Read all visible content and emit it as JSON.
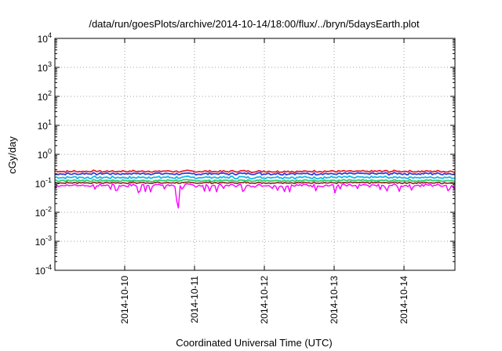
{
  "chart_data": {
    "type": "line",
    "title": "/data/run/goesPlots/archive/2014-10-14/18:00/flux/../bryn/5daysEarth.plot",
    "xlabel": "Coordinated Universal Time (UTC)",
    "ylabel": "cGy/day",
    "y_scale": "log",
    "ylim": [
      0.0001,
      10000
    ],
    "xlim": [
      0,
      5.73
    ],
    "grid": true,
    "y_ticks": [
      {
        "value": 0.0001,
        "base": "10",
        "exp": "-4"
      },
      {
        "value": 0.001,
        "base": "10",
        "exp": "-3"
      },
      {
        "value": 0.01,
        "base": "10",
        "exp": "-2"
      },
      {
        "value": 0.1,
        "base": "10",
        "exp": "-1"
      },
      {
        "value": 1,
        "base": "10",
        "exp": "0"
      },
      {
        "value": 10,
        "base": "10",
        "exp": "1"
      },
      {
        "value": 100,
        "base": "10",
        "exp": "2"
      },
      {
        "value": 1000,
        "base": "10",
        "exp": "3"
      },
      {
        "value": 10000,
        "base": "10",
        "exp": "4"
      }
    ],
    "x_ticks": [
      {
        "value": 1,
        "label": "2014-10-10"
      },
      {
        "value": 2,
        "label": "2014-10-11"
      },
      {
        "value": 3,
        "label": "2014-10-12"
      },
      {
        "value": 4,
        "label": "2014-10-13"
      },
      {
        "value": 5,
        "label": "2014-10-14"
      }
    ],
    "series": [
      {
        "color": "#e8202a",
        "level": 0.26,
        "spread": 0.08
      },
      {
        "color": "#2c3ddc",
        "level": 0.215,
        "spread": 0.09
      },
      {
        "color": "#17b7e6",
        "level": 0.16,
        "spread": 0.1
      },
      {
        "color": "#2ecc71",
        "level": 0.125,
        "spread": 0.08
      },
      {
        "color": "#8b3a2a",
        "level": 0.105,
        "spread": 0.07
      },
      {
        "color": "#ff00ff",
        "level": 0.085,
        "spread": 0.12
      }
    ]
  }
}
